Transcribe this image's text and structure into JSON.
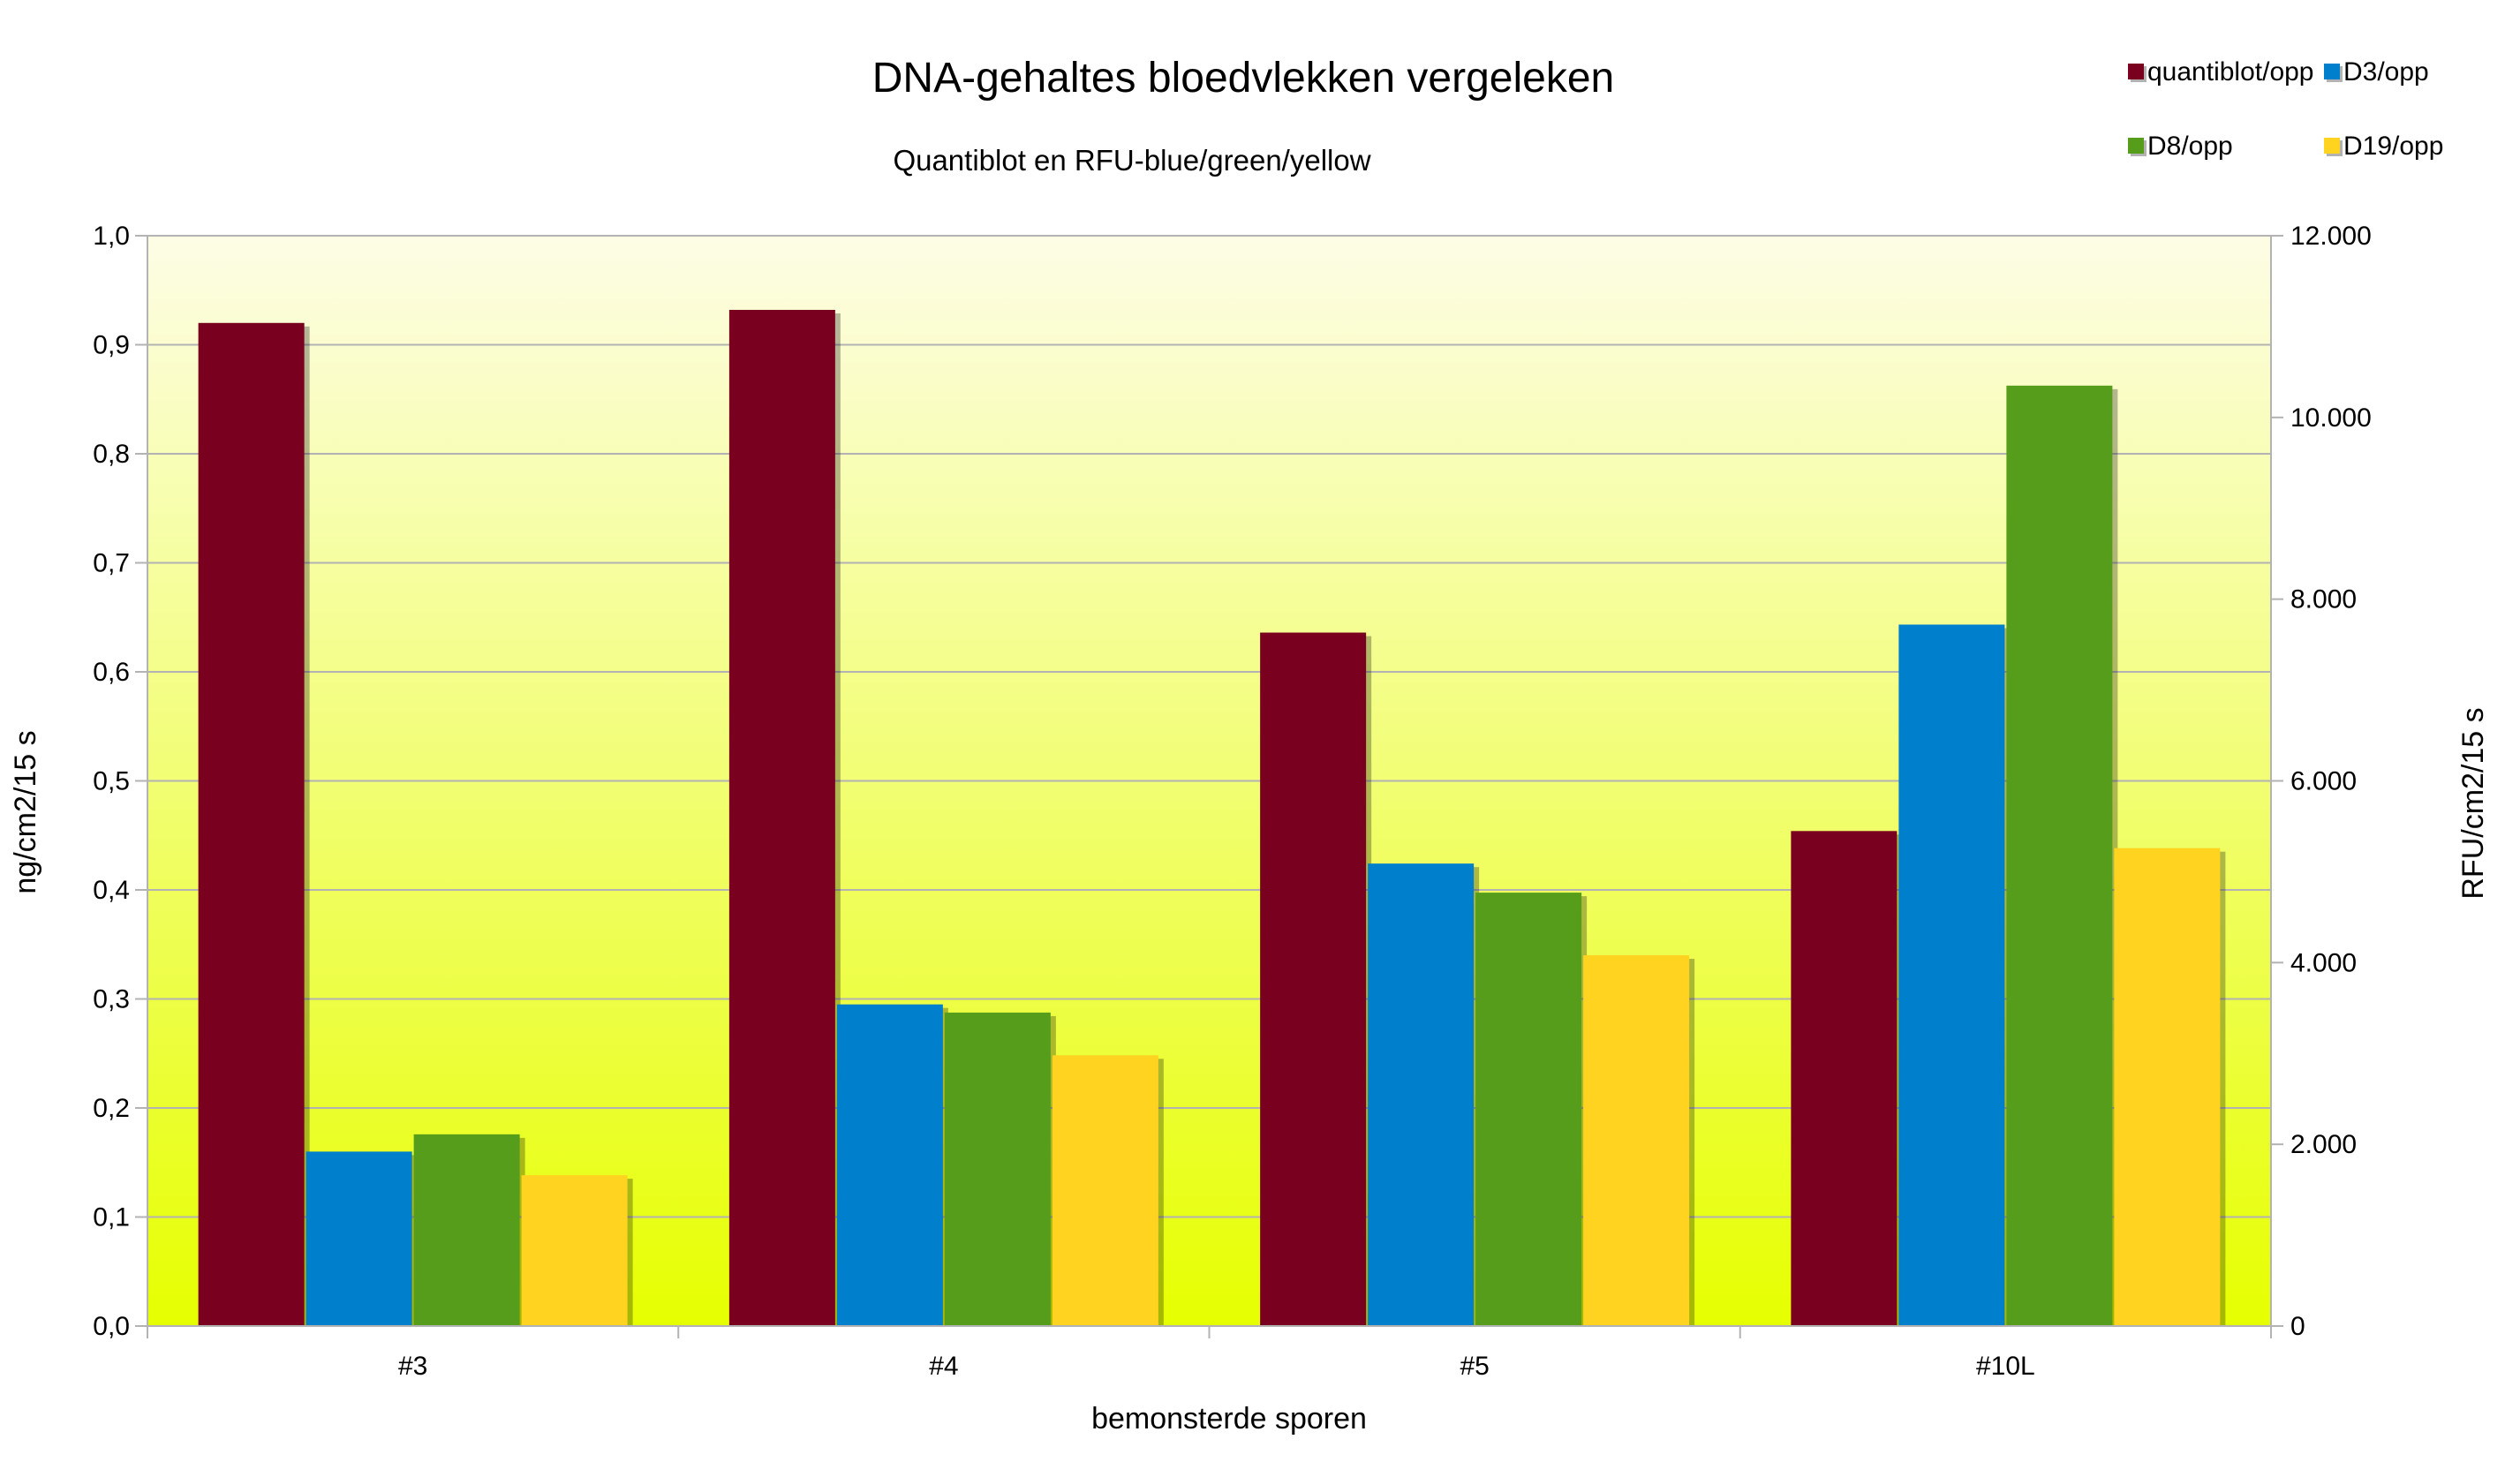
{
  "chart_data": {
    "type": "bar",
    "title": "DNA-gehaltes bloedvlekken vergeleken",
    "subtitle": "Quantiblot en RFU-blue/green/yellow",
    "xlabel": "bemonsterde sporen",
    "ylabel_left": "ng/cm2/15 s",
    "ylabel_right": "RFU/cm2/15 s",
    "categories": [
      "#3",
      "#4",
      "#5",
      "#10L"
    ],
    "left_axis": {
      "min": 0,
      "max": 1.0,
      "ticks": [
        "0,0",
        "0,1",
        "0,2",
        "0,3",
        "0,4",
        "0,5",
        "0,6",
        "0,7",
        "0,8",
        "0,9",
        "1,0"
      ]
    },
    "right_axis": {
      "min": 0,
      "max": 12000,
      "ticks": [
        "0",
        "2.000",
        "4.000",
        "6.000",
        "8.000",
        "10.000",
        "12.000"
      ]
    },
    "series": [
      {
        "name": "quantiblot/opp",
        "axis": "left",
        "color": "#7a0020",
        "values": [
          0.92,
          0.932,
          0.636,
          0.454
        ]
      },
      {
        "name": "D3/opp",
        "axis": "right",
        "color": "#0080cc",
        "values": [
          1920,
          3540,
          5090,
          7720
        ]
      },
      {
        "name": "D8/opp",
        "axis": "right",
        "color": "#579d1c",
        "values": [
          2110,
          3450,
          4770,
          10350
        ]
      },
      {
        "name": "D19/opp",
        "axis": "right",
        "color": "#ffd320",
        "values": [
          1660,
          2980,
          4080,
          5260
        ]
      }
    ],
    "legend_position": "top-right",
    "grid": true,
    "background_gradient": [
      "#fdfde6",
      "#e6ff00"
    ]
  }
}
